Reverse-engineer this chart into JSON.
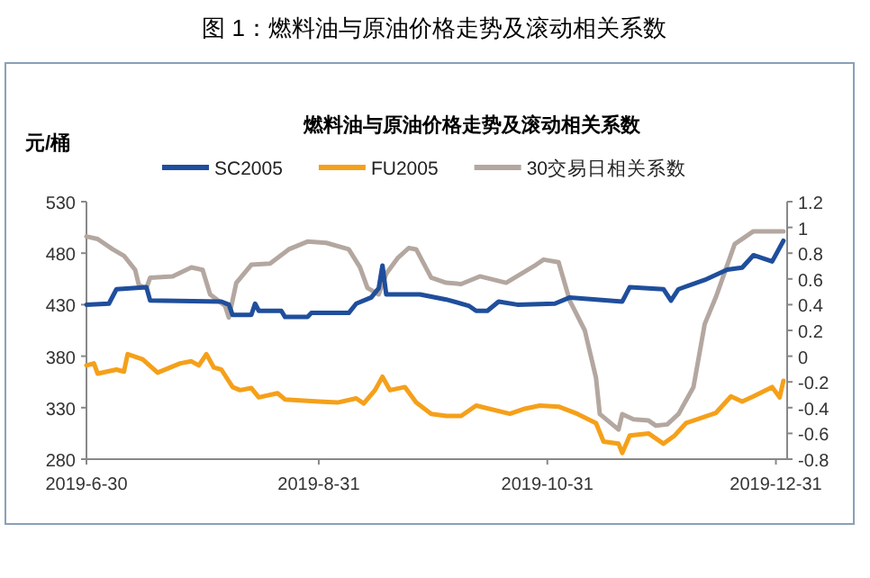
{
  "chart_data": {
    "type": "line",
    "title": "图 1：燃料油与原油价格走势及滚动相关系数",
    "subtitle": "燃料油与原油价格走势及滚动相关系数",
    "ylabel": "元/桶",
    "xlim": [
      "2019-06-30",
      "2020-01-03"
    ],
    "xticks": [
      {
        "value": "2019-06-30",
        "label": "2019-6-30"
      },
      {
        "value": "2019-08-31",
        "label": "2019-8-31"
      },
      {
        "value": "2019-10-31",
        "label": "2019-10-31"
      },
      {
        "value": "2019-12-31",
        "label": "2019-12-31"
      }
    ],
    "ylim": [
      280,
      530
    ],
    "yticks": [
      280,
      330,
      380,
      430,
      480,
      530
    ],
    "y2lim": [
      -0.8,
      1.2
    ],
    "y2ticks": [
      -0.8,
      -0.6,
      -0.4,
      -0.2,
      0,
      0.2,
      0.4,
      0.6,
      0.8,
      1,
      1.2
    ],
    "legend": "top",
    "series": [
      {
        "name": "SC2005",
        "color": "#1f4e9c",
        "x": [
          "2019-06-30",
          "2019-07-06",
          "2019-07-08",
          "2019-07-16",
          "2019-07-17",
          "2019-08-05",
          "2019-08-07",
          "2019-08-08",
          "2019-08-13",
          "2019-08-14",
          "2019-08-15",
          "2019-08-21",
          "2019-08-22",
          "2019-08-28",
          "2019-08-29",
          "2019-09-08",
          "2019-09-10",
          "2019-09-14",
          "2019-09-16",
          "2019-09-17",
          "2019-09-18",
          "2019-09-27",
          "2019-10-04",
          "2019-10-10",
          "2019-10-12",
          "2019-10-15",
          "2019-10-18",
          "2019-10-23",
          "2019-11-02",
          "2019-11-06",
          "2019-11-13",
          "2019-11-20",
          "2019-11-22",
          "2019-12-01",
          "2019-12-03",
          "2019-12-05",
          "2019-12-12",
          "2019-12-18",
          "2019-12-22",
          "2019-12-25",
          "2019-12-30",
          "2020-01-02"
        ],
        "values": [
          430,
          431,
          445,
          447,
          434,
          433,
          430,
          420,
          420,
          431,
          424,
          424,
          418,
          418,
          422,
          422,
          431,
          437,
          446,
          468,
          440,
          440,
          435,
          429,
          424,
          424,
          433,
          430,
          431,
          437,
          435,
          433,
          447,
          445,
          434,
          445,
          454,
          464,
          466,
          478,
          472,
          492
        ]
      },
      {
        "name": "FU2005",
        "color": "#f5a01a",
        "x": [
          "2019-06-30",
          "2019-07-02",
          "2019-07-03",
          "2019-07-08",
          "2019-07-10",
          "2019-07-11",
          "2019-07-15",
          "2019-07-19",
          "2019-07-25",
          "2019-07-28",
          "2019-07-30",
          "2019-08-01",
          "2019-08-03",
          "2019-08-05",
          "2019-08-08",
          "2019-08-10",
          "2019-08-13",
          "2019-08-15",
          "2019-08-20",
          "2019-08-22",
          "2019-08-31",
          "2019-09-05",
          "2019-09-10",
          "2019-09-12",
          "2019-09-15",
          "2019-09-17",
          "2019-09-19",
          "2019-09-23",
          "2019-09-26",
          "2019-09-30",
          "2019-10-04",
          "2019-10-08",
          "2019-10-12",
          "2019-10-21",
          "2019-10-25",
          "2019-10-29",
          "2019-11-03",
          "2019-11-08",
          "2019-11-13",
          "2019-11-15",
          "2019-11-19",
          "2019-11-20",
          "2019-11-22",
          "2019-11-27",
          "2019-12-01",
          "2019-12-04",
          "2019-12-07",
          "2019-12-15",
          "2019-12-19",
          "2019-12-22",
          "2019-12-25",
          "2019-12-30",
          "2020-01-01",
          "2020-01-02"
        ],
        "values": [
          371,
          373,
          363,
          367,
          365,
          382,
          377,
          364,
          373,
          375,
          371,
          382,
          369,
          367,
          350,
          347,
          349,
          340,
          344,
          338,
          336,
          335,
          339,
          334,
          347,
          360,
          347,
          350,
          335,
          324,
          322,
          322,
          332,
          324,
          329,
          332,
          331,
          324,
          315,
          297,
          295,
          286,
          303,
          305,
          295,
          303,
          315,
          325,
          341,
          336,
          341,
          350,
          340,
          356
        ]
      },
      {
        "name": "30交易日相关系数",
        "color": "#b3a7a0",
        "axis": "y2",
        "x": [
          "2019-06-30",
          "2019-07-03",
          "2019-07-07",
          "2019-07-10",
          "2019-07-13",
          "2019-07-14",
          "2019-07-16",
          "2019-07-17",
          "2019-07-23",
          "2019-07-28",
          "2019-07-31",
          "2019-08-02",
          "2019-08-06",
          "2019-08-07",
          "2019-08-09",
          "2019-08-13",
          "2019-08-18",
          "2019-08-23",
          "2019-08-28",
          "2019-09-02",
          "2019-09-08",
          "2019-09-11",
          "2019-09-13",
          "2019-09-16",
          "2019-09-18",
          "2019-09-21",
          "2019-09-24",
          "2019-09-26",
          "2019-09-30",
          "2019-10-04",
          "2019-10-08",
          "2019-10-13",
          "2019-10-20",
          "2019-10-28",
          "2019-10-30",
          "2019-11-03",
          "2019-11-06",
          "2019-11-10",
          "2019-11-13",
          "2019-11-14",
          "2019-11-19",
          "2019-11-20",
          "2019-11-23",
          "2019-11-27",
          "2019-11-29",
          "2019-12-02",
          "2019-12-05",
          "2019-12-09",
          "2019-12-12",
          "2019-12-15",
          "2019-12-20",
          "2019-12-25",
          "2020-01-02"
        ],
        "values": [
          0.93,
          0.91,
          0.83,
          0.78,
          0.67,
          0.55,
          0.53,
          0.61,
          0.62,
          0.69,
          0.67,
          0.48,
          0.39,
          0.3,
          0.57,
          0.71,
          0.72,
          0.83,
          0.89,
          0.88,
          0.83,
          0.69,
          0.53,
          0.48,
          0.64,
          0.76,
          0.84,
          0.83,
          0.61,
          0.57,
          0.56,
          0.62,
          0.57,
          0.71,
          0.75,
          0.73,
          0.43,
          0.2,
          -0.17,
          -0.45,
          -0.57,
          -0.45,
          -0.49,
          -0.5,
          -0.54,
          -0.53,
          -0.45,
          -0.24,
          0.25,
          0.46,
          0.87,
          0.97,
          0.97
        ]
      }
    ]
  }
}
